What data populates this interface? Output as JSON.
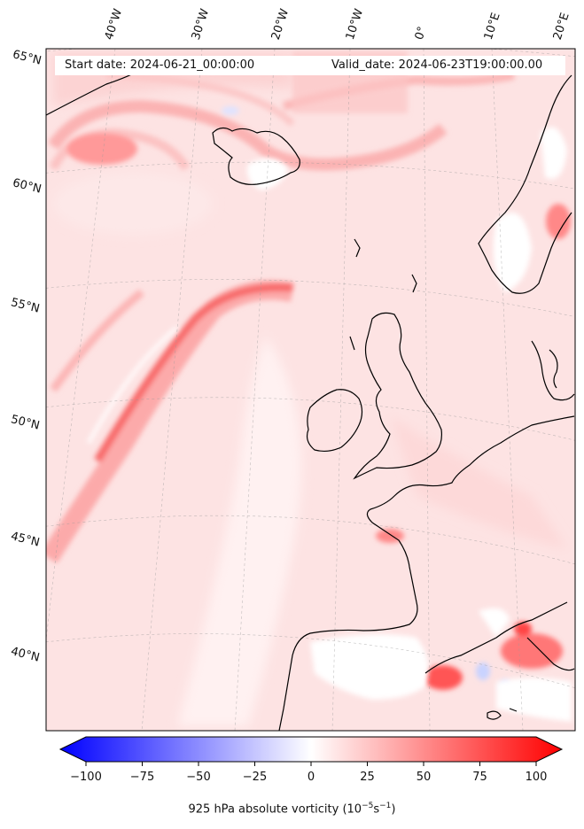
{
  "map": {
    "start_date": "Start date: 2024-06-21_00:00:00",
    "valid_date": "Valid_date: 2024-06-23T19:00:00.00",
    "lon_labels": [
      "40°W",
      "30°W",
      "20°W",
      "10°W",
      "0°",
      "10°E",
      "20°E"
    ],
    "lat_labels": [
      "65°N",
      "60°N",
      "55°N",
      "50°N",
      "45°N",
      "40°N"
    ]
  },
  "colorbar": {
    "ticks": [
      "−100",
      "−75",
      "−50",
      "−25",
      "0",
      "25",
      "50",
      "75",
      "100"
    ],
    "label": "925 hPa absolute vorticity (10",
    "label_exp": "−5",
    "label_unit": "s",
    "label_exp2": "−1",
    "range": [
      -100,
      100
    ],
    "min_color": "#0000ff",
    "mid_color": "#ffffff",
    "max_color": "#ff0000"
  }
}
